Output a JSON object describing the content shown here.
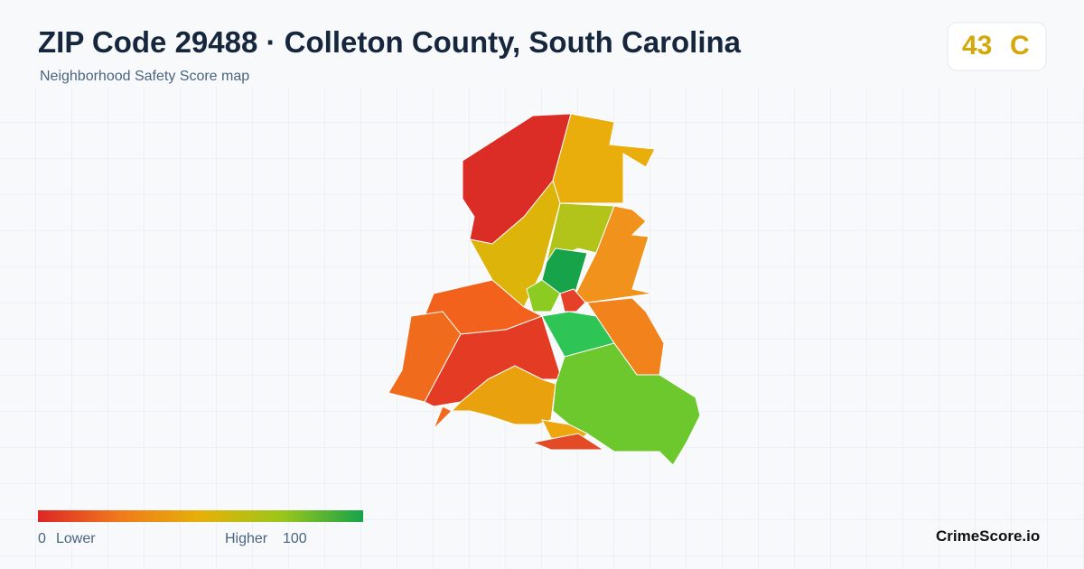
{
  "header": {
    "title": "ZIP Code 29488 · Colleton County, South Carolina",
    "subtitle": "Neighborhood Safety Score map",
    "score": 43,
    "grade": "C"
  },
  "legend": {
    "min": 0,
    "min_label": "Lower",
    "max_label": "Higher",
    "max": 100
  },
  "brand": "CrimeScore.io"
}
